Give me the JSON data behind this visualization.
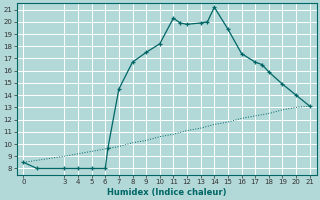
{
  "xlabel": "Humidex (Indice chaleur)",
  "background_color": "#b2d8d8",
  "grid_color": "#c8e8e8",
  "line_color": "#006666",
  "xlim": [
    -0.5,
    21.5
  ],
  "ylim": [
    7.5,
    21.5
  ],
  "xticks": [
    0,
    3,
    4,
    5,
    6,
    7,
    8,
    9,
    10,
    11,
    12,
    13,
    14,
    15,
    16,
    17,
    18,
    19,
    20,
    21
  ],
  "yticks": [
    8,
    9,
    10,
    11,
    12,
    13,
    14,
    15,
    16,
    17,
    18,
    19,
    20,
    21
  ],
  "curve1_x": [
    0,
    1,
    3,
    4,
    5,
    6,
    6.2,
    7,
    8,
    9,
    10,
    11,
    11.5,
    12,
    13,
    13.5,
    14,
    15,
    16,
    17,
    17.5,
    18,
    19,
    20,
    21
  ],
  "curve1_y": [
    8.5,
    8.0,
    8.0,
    8.0,
    8.0,
    8.0,
    9.7,
    14.5,
    16.7,
    17.5,
    18.2,
    20.3,
    19.9,
    19.8,
    19.9,
    20.0,
    21.2,
    19.4,
    17.4,
    16.7,
    16.5,
    15.9,
    14.9,
    14.0,
    13.1
  ],
  "curve2_x": [
    0,
    3,
    4,
    5,
    6,
    7,
    8,
    9,
    10,
    11,
    12,
    13,
    14,
    15,
    16,
    17,
    18,
    19,
    20,
    21
  ],
  "curve2_y": [
    8.5,
    9.0,
    9.2,
    9.4,
    9.6,
    9.8,
    10.1,
    10.3,
    10.6,
    10.8,
    11.1,
    11.3,
    11.6,
    11.8,
    12.1,
    12.3,
    12.5,
    12.8,
    13.0,
    13.1
  ]
}
